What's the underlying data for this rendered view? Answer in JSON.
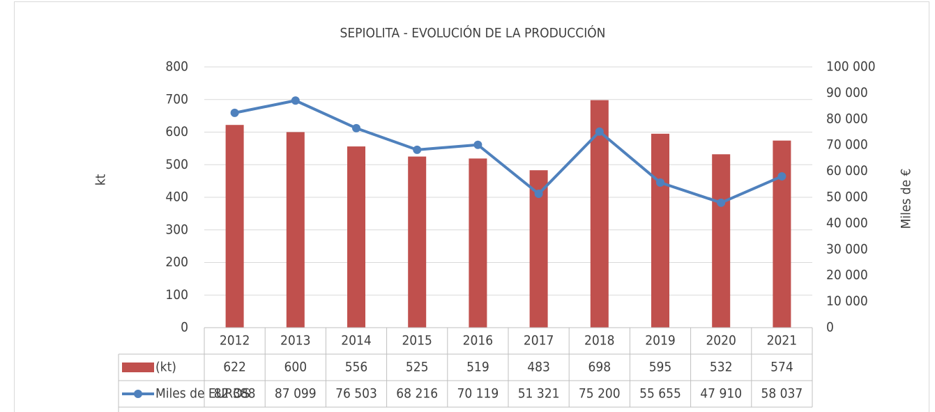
{
  "chart_data": {
    "type": "bar",
    "title": "SEPIOLITA - EVOLUCIÓN  DE LA PRODUCCIÓN",
    "y_label": "kt",
    "y2_label": "Miles de €",
    "categories": [
      "2012",
      "2013",
      "2014",
      "2015",
      "2016",
      "2017",
      "2018",
      "2019",
      "2020",
      "2021"
    ],
    "series": [
      {
        "name": "(kt)",
        "type": "bar",
        "color": "#c0504d",
        "values": [
          622,
          600,
          556,
          525,
          519,
          483,
          698,
          595,
          532,
          574
        ]
      },
      {
        "name": "Miles de EUROS",
        "type": "line",
        "axis": "y2",
        "color": "#4f81bd",
        "values": [
          82388,
          87099,
          76503,
          68216,
          70119,
          51321,
          75200,
          55655,
          47910,
          58037
        ],
        "value_labels": [
          "82 388",
          "87 099",
          "76 503",
          "68 216",
          "70 119",
          "51 321",
          "75 200",
          "55 655",
          "47 910",
          "58 037"
        ]
      }
    ],
    "ylim": [
      0,
      800
    ],
    "yticks": [
      0,
      100,
      200,
      300,
      400,
      500,
      600,
      700,
      800
    ],
    "y2lim": [
      0,
      100000
    ],
    "y2ticks": [
      0,
      {
        "value": 10000,
        "label": "10 000"
      },
      {
        "value": 20000,
        "label": "20 000"
      },
      {
        "value": 30000,
        "label": "30 000"
      },
      {
        "value": 40000,
        "label": "40 000"
      },
      {
        "value": 50000,
        "label": "50 000"
      },
      {
        "value": 60000,
        "label": "60 000"
      },
      {
        "value": 70000,
        "label": "70 000"
      },
      {
        "value": 80000,
        "label": "80 000"
      },
      {
        "value": 90000,
        "label": "90 000"
      },
      {
        "value": 100000,
        "label": "100 000"
      }
    ],
    "grid": true,
    "data_table": true
  }
}
